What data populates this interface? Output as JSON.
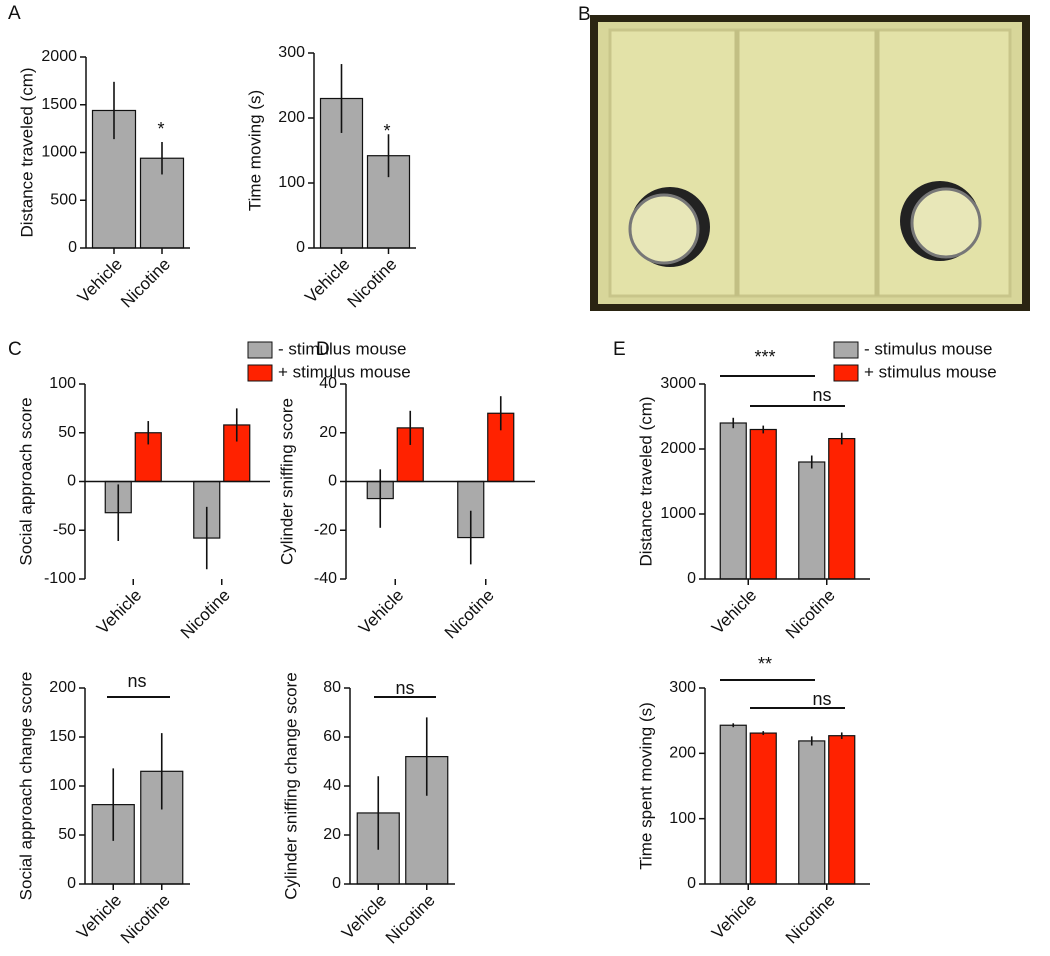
{
  "image_panel": {
    "panel": "B"
  },
  "chart_data": [
    {
      "type": "bar",
      "panel": "A",
      "ylabel": "Distance traveled (cm)",
      "categories": [
        "Vehicle",
        "Nicotine"
      ],
      "series": [
        {
          "color": "#aaaaaa",
          "values": [
            1440,
            940
          ],
          "errors": [
            300,
            170
          ]
        }
      ],
      "ylim": [
        0,
        2000
      ],
      "yticks": [
        0,
        500,
        1000,
        1500,
        2000
      ],
      "annotations": [
        "*"
      ]
    },
    {
      "type": "bar",
      "ylabel": "Time moving (s)",
      "categories": [
        "Vehicle",
        "Nicotine"
      ],
      "series": [
        {
          "color": "#aaaaaa",
          "values": [
            230,
            142
          ],
          "errors": [
            53,
            33
          ]
        }
      ],
      "ylim": [
        0,
        300
      ],
      "yticks": [
        0,
        100,
        200,
        300
      ],
      "annotations": [
        "*"
      ]
    },
    {
      "type": "bar",
      "panel": "C",
      "ylabel": "Social approach score",
      "categories": [
        "Vehicle",
        "Nicotine"
      ],
      "series": [
        {
          "name": "- stimulus mouse",
          "color": "#aaaaaa",
          "values": [
            -32,
            -58
          ],
          "errors": [
            29,
            32
          ]
        },
        {
          "name": "+ stimulus mouse",
          "color": "#ff2200",
          "values": [
            50,
            58
          ],
          "errors": [
            12,
            17
          ]
        }
      ],
      "ylim": [
        -100,
        100
      ],
      "yticks": [
        -100,
        -50,
        0,
        50,
        100
      ],
      "annotations": []
    },
    {
      "type": "bar",
      "panel": "D",
      "ylabel": "Cylinder sniffing score",
      "categories": [
        "Vehicle",
        "Nicotine"
      ],
      "series": [
        {
          "color": "#aaaaaa",
          "values": [
            -7,
            -23
          ],
          "errors": [
            12,
            11
          ]
        },
        {
          "color": "#ff2200",
          "values": [
            22,
            28
          ],
          "errors": [
            7,
            7
          ]
        }
      ],
      "ylim": [
        -40,
        40
      ],
      "yticks": [
        -40,
        -20,
        0,
        20,
        40
      ],
      "annotations": []
    },
    {
      "type": "bar",
      "ylabel": "Social approach change score",
      "categories": [
        "Vehicle",
        "Nicotine"
      ],
      "series": [
        {
          "color": "#aaaaaa",
          "values": [
            81,
            115
          ],
          "errors": [
            37,
            39
          ]
        }
      ],
      "ylim": [
        0,
        200
      ],
      "yticks": [
        0,
        50,
        100,
        150,
        200
      ],
      "annotations": [
        "ns"
      ]
    },
    {
      "type": "bar",
      "ylabel": "Cylinder sniffing change score",
      "categories": [
        "Vehicle",
        "Nicotine"
      ],
      "series": [
        {
          "color": "#aaaaaa",
          "values": [
            29,
            52
          ],
          "errors": [
            15,
            16
          ]
        }
      ],
      "ylim": [
        0,
        80
      ],
      "yticks": [
        0,
        20,
        40,
        60,
        80
      ],
      "annotations": [
        "ns"
      ]
    },
    {
      "type": "bar",
      "panel": "E",
      "ylabel": "Distance traveled (cm)",
      "categories": [
        "Vehicle",
        "Nicotine"
      ],
      "series": [
        {
          "name": "- stimulus mouse",
          "color": "#aaaaaa",
          "values": [
            2400,
            1800
          ],
          "errors": [
            80,
            100
          ]
        },
        {
          "name": "+ stimulus mouse",
          "color": "#ff2200",
          "values": [
            2300,
            2160
          ],
          "errors": [
            60,
            90
          ]
        }
      ],
      "ylim": [
        0,
        3000
      ],
      "yticks": [
        0,
        1000,
        2000,
        3000
      ],
      "annotations": [
        "***",
        "ns"
      ]
    },
    {
      "type": "bar",
      "ylabel": "Time spent moving (s)",
      "categories": [
        "Vehicle",
        "Nicotine"
      ],
      "series": [
        {
          "color": "#aaaaaa",
          "values": [
            243,
            219
          ],
          "errors": [
            3,
            7
          ]
        },
        {
          "color": "#ff2200",
          "values": [
            231,
            227
          ],
          "errors": [
            3,
            5
          ]
        }
      ],
      "ylim": [
        0,
        300
      ],
      "yticks": [
        0,
        100,
        200,
        300
      ],
      "annotations": [
        "**",
        "ns"
      ]
    }
  ]
}
